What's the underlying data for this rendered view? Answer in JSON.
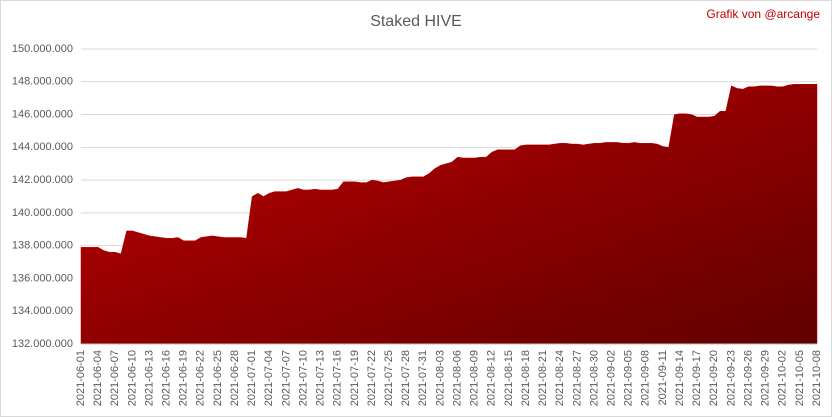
{
  "chart_data": {
    "type": "area",
    "title": "Staked HIVE",
    "annotation": "Grafik von @arcange",
    "categories": [
      "2021-06-01",
      null,
      null,
      "2021-06-04",
      null,
      null,
      "2021-06-07",
      null,
      null,
      "2021-06-10",
      null,
      null,
      "2021-06-13",
      null,
      null,
      "2021-06-16",
      null,
      null,
      "2021-06-19",
      null,
      null,
      "2021-06-22",
      null,
      null,
      "2021-06-25",
      null,
      null,
      "2021-06-28",
      null,
      null,
      "2021-07-01",
      null,
      null,
      "2021-07-04",
      null,
      null,
      "2021-07-07",
      null,
      null,
      "2021-07-10",
      null,
      null,
      "2021-07-13",
      null,
      null,
      "2021-07-16",
      null,
      null,
      "2021-07-19",
      null,
      null,
      "2021-07-22",
      null,
      null,
      "2021-07-25",
      null,
      null,
      "2021-07-28",
      null,
      null,
      "2021-07-31",
      null,
      null,
      "2021-08-03",
      null,
      null,
      "2021-08-06",
      null,
      null,
      "2021-08-09",
      null,
      null,
      "2021-08-12",
      null,
      null,
      "2021-08-15",
      null,
      null,
      "2021-08-18",
      null,
      null,
      "2021-08-21",
      null,
      null,
      "2021-08-24",
      null,
      null,
      "2021-08-27",
      null,
      null,
      "2021-08-30",
      null,
      null,
      "2021-09-02",
      null,
      null,
      "2021-09-05",
      null,
      null,
      "2021-09-08",
      null,
      null,
      "2021-09-11",
      null,
      null,
      "2021-09-14",
      null,
      null,
      "2021-09-17",
      null,
      null,
      "2021-09-20",
      null,
      null,
      "2021-09-23",
      null,
      null,
      "2021-09-26",
      null,
      null,
      "2021-09-29",
      null,
      null,
      "2021-10-02",
      null,
      null,
      "2021-10-05",
      null,
      null,
      "2021-10-08"
    ],
    "values": [
      137900000,
      137900000,
      137900000,
      137900000,
      137700000,
      137600000,
      137600000,
      137500000,
      138900000,
      138900000,
      138800000,
      138700000,
      138600000,
      138550000,
      138500000,
      138450000,
      138450000,
      138500000,
      138300000,
      138300000,
      138300000,
      138500000,
      138550000,
      138600000,
      138550000,
      138500000,
      138500000,
      138500000,
      138500000,
      138450000,
      141000000,
      141200000,
      141000000,
      141200000,
      141300000,
      141300000,
      141300000,
      141400000,
      141500000,
      141400000,
      141400000,
      141450000,
      141400000,
      141400000,
      141400000,
      141450000,
      141900000,
      141900000,
      141900000,
      141850000,
      141850000,
      142000000,
      141950000,
      141850000,
      141900000,
      141950000,
      142000000,
      142150000,
      142200000,
      142200000,
      142200000,
      142400000,
      142700000,
      142900000,
      143000000,
      143100000,
      143400000,
      143350000,
      143350000,
      143350000,
      143400000,
      143400000,
      143700000,
      143850000,
      143850000,
      143850000,
      143850000,
      144100000,
      144150000,
      144150000,
      144150000,
      144150000,
      144150000,
      144200000,
      144250000,
      144250000,
      144200000,
      144200000,
      144150000,
      144200000,
      144250000,
      144250000,
      144300000,
      144300000,
      144300000,
      144250000,
      144250000,
      144300000,
      144250000,
      144250000,
      144250000,
      144200000,
      144050000,
      144000000,
      146000000,
      146050000,
      146050000,
      146000000,
      145850000,
      145850000,
      145850000,
      145900000,
      146200000,
      146200000,
      147750000,
      147600000,
      147550000,
      147700000,
      147700000,
      147750000,
      147750000,
      147750000,
      147700000,
      147700000,
      147800000,
      147850000,
      147850000,
      147850000,
      147850000,
      147850000
    ],
    "color": "#c00000",
    "annotation_color": "#c00000",
    "ylim": [
      132000000,
      150000000
    ],
    "yticks": [
      {
        "value": 132000000,
        "label": "132.000.000"
      },
      {
        "value": 134000000,
        "label": "134.000.000"
      },
      {
        "value": 136000000,
        "label": "136.000.000"
      },
      {
        "value": 138000000,
        "label": "138.000.000"
      },
      {
        "value": 140000000,
        "label": "140.000.000"
      },
      {
        "value": 142000000,
        "label": "142.000.000"
      },
      {
        "value": 144000000,
        "label": "144.000.000"
      },
      {
        "value": 146000000,
        "label": "146.000.000"
      },
      {
        "value": 148000000,
        "label": "148.000.000"
      },
      {
        "value": 150000000,
        "label": "150.000.000"
      }
    ],
    "grid": true
  }
}
